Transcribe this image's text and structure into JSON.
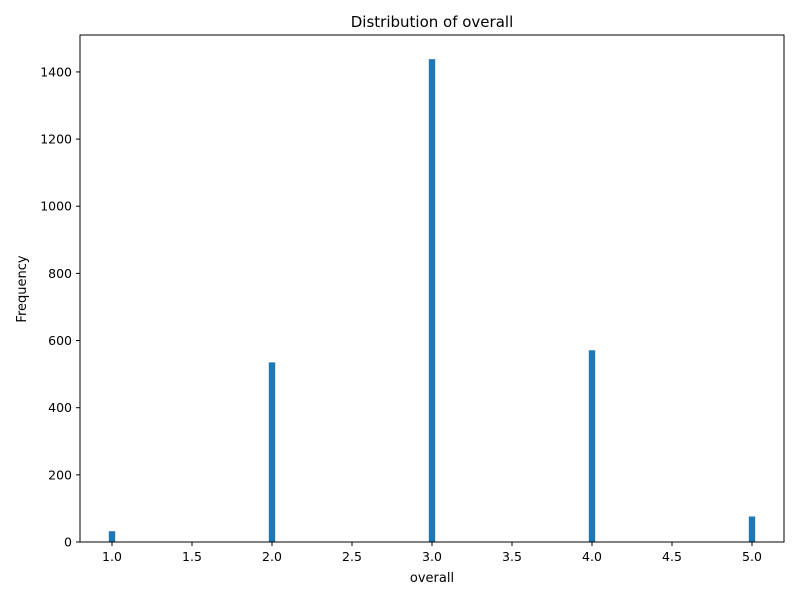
{
  "chart_data": {
    "type": "bar",
    "title": "Distribution of overall",
    "xlabel": "overall",
    "ylabel": "Frequency",
    "x": [
      1.0,
      2.0,
      3.0,
      4.0,
      5.0
    ],
    "values": [
      32,
      535,
      1438,
      571,
      76
    ],
    "bin_width": 0.04,
    "xlim": [
      0.8,
      5.2
    ],
    "ylim": [
      0,
      1510
    ],
    "xticks": [
      1.0,
      1.5,
      2.0,
      2.5,
      3.0,
      3.5,
      4.0,
      4.5,
      5.0
    ],
    "xtick_labels": [
      "1.0",
      "1.5",
      "2.0",
      "2.5",
      "3.0",
      "3.5",
      "4.0",
      "4.5",
      "5.0"
    ],
    "yticks": [
      0,
      200,
      400,
      600,
      800,
      1000,
      1200,
      1400
    ],
    "ytick_labels": [
      "0",
      "200",
      "400",
      "600",
      "800",
      "1000",
      "1200",
      "1400"
    ],
    "grid": false,
    "legend": "none",
    "bar_color": "#1f77b4"
  }
}
